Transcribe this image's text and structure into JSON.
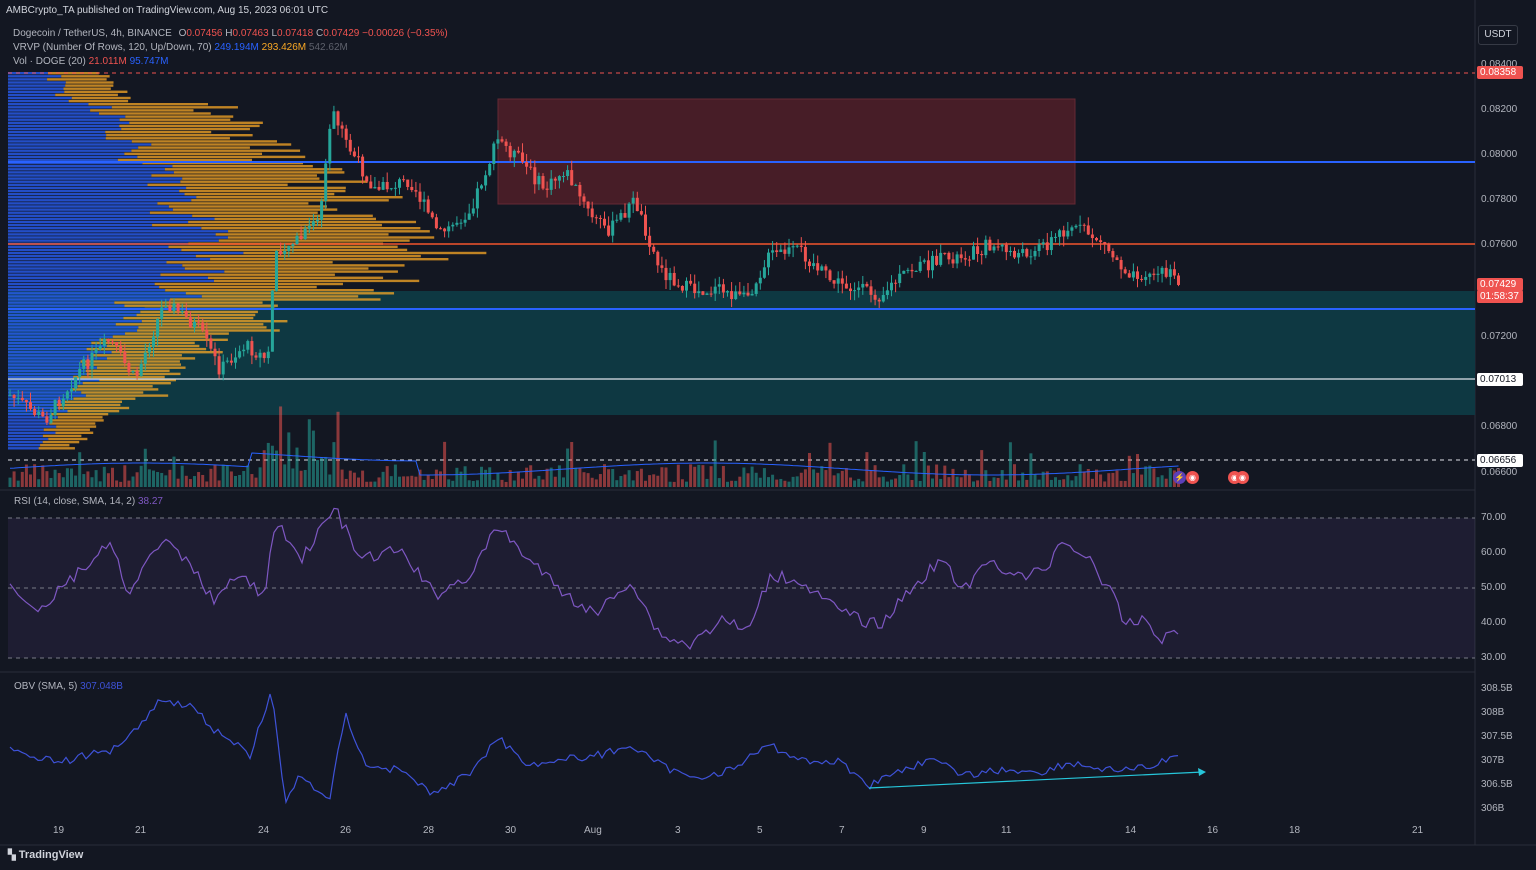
{
  "header": {
    "published_by": "AMBCrypto_TA published on TradingView.com, Aug 15, 2023 06:01 UTC",
    "symbol": "Dogecoin / TetherUS, 4h, BINANCE",
    "ohlc": {
      "o_label": "O",
      "o": "0.07456",
      "h_label": "H",
      "h": "0.07463",
      "l_label": "L",
      "l": "0.07418",
      "c_label": "C",
      "c": "0.07429",
      "change": "−0.00026 (−0.35%)"
    },
    "vrvp_label": "VRVP (Number Of Rows, 120, Up/Down, 70)",
    "vrvp_v1": "249.194M",
    "vrvp_v2": "293.426M",
    "vrvp_v3": "542.62M",
    "vol_label": "Vol · DOGE (20)",
    "vol_v1": "21.011M",
    "vol_v2": "95.747M"
  },
  "currency_button": "USDT",
  "price_axis": {
    "ticks": [
      "0.08400",
      "0.08200",
      "0.08000",
      "0.07800",
      "0.07600",
      "0.07200",
      "0.06800",
      "0.06600"
    ],
    "tags": {
      "top_resistance": "0.08358",
      "current_price": "0.07429",
      "countdown": "01:58:37",
      "support": "0.07013",
      "low": "0.06656"
    }
  },
  "rsi": {
    "label": "RSI (14, close, SMA, 14, 2)",
    "value": "38.27",
    "ticks": [
      "70.00",
      "60.00",
      "50.00",
      "40.00",
      "30.00"
    ]
  },
  "obv": {
    "label": "OBV (SMA, 5)",
    "value": "307.048B",
    "ticks": [
      "308.5B",
      "308B",
      "307.5B",
      "307B",
      "306.5B",
      "306B"
    ]
  },
  "time_axis": [
    "19",
    "21",
    "24",
    "26",
    "28",
    "30",
    "Aug",
    "3",
    "5",
    "7",
    "9",
    "11",
    "14",
    "16",
    "18",
    "21"
  ],
  "footer": {
    "logo_text": "TradingView"
  },
  "colors": {
    "background": "#131722",
    "up": "#26a69a",
    "down": "#ef5350",
    "level_blue": "#2962ff",
    "level_orange": "#f2552c",
    "rsi_line": "#7e57c2",
    "obv_line": "#3e52d8",
    "trend_arrow": "#26c6da",
    "demand_zone": "#0e3a44",
    "supply_zone": "#4a1e28"
  }
}
